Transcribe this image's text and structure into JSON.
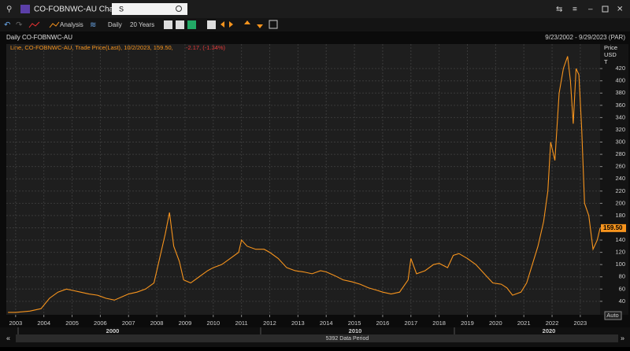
{
  "window": {
    "title": "CO-FOBNWC-AU Chart",
    "search": "S"
  },
  "toolbar": {
    "analysis": "Analysis",
    "interval": "Daily",
    "range": "20 Years"
  },
  "chart_data": {
    "type": "line",
    "title": "Daily CO-FOBNWC-AU",
    "subtitle": "9/23/2002 - 9/29/2023 (PAR)",
    "legend": "Line, CO-FOBNWC-AU, Trade Price(Last), 10/2/2023, 159.50,",
    "change": "-2.17, (-1.34%)",
    "ylabel": [
      "Price",
      "USD",
      "T"
    ],
    "auto_button": "Auto",
    "color": "#f7941d",
    "x": [
      2002.73,
      2003.0,
      2003.5,
      2003.9,
      2004.2,
      2004.5,
      2004.8,
      2005.0,
      2005.3,
      2005.6,
      2005.9,
      2006.2,
      2006.5,
      2006.8,
      2007.0,
      2007.3,
      2007.6,
      2007.9,
      2008.1,
      2008.3,
      2008.45,
      2008.6,
      2008.8,
      2008.95,
      2009.2,
      2009.5,
      2009.8,
      2010.0,
      2010.3,
      2010.6,
      2010.9,
      2011.0,
      2011.2,
      2011.5,
      2011.8,
      2012.0,
      2012.3,
      2012.6,
      2012.9,
      2013.2,
      2013.5,
      2013.8,
      2014.0,
      2014.3,
      2014.6,
      2014.9,
      2015.2,
      2015.5,
      2015.8,
      2016.0,
      2016.3,
      2016.6,
      2016.9,
      2017.0,
      2017.2,
      2017.5,
      2017.8,
      2018.0,
      2018.3,
      2018.5,
      2018.7,
      2019.0,
      2019.3,
      2019.6,
      2019.9,
      2020.2,
      2020.4,
      2020.6,
      2020.9,
      2021.1,
      2021.3,
      2021.5,
      2021.7,
      2021.85,
      2021.95,
      2022.1,
      2022.25,
      2022.4,
      2022.55,
      2022.65,
      2022.75,
      2022.85,
      2022.95,
      2023.05,
      2023.15,
      2023.3,
      2023.45,
      2023.6,
      2023.7
    ],
    "values": [
      22,
      22,
      24,
      28,
      45,
      55,
      60,
      58,
      55,
      52,
      50,
      45,
      42,
      48,
      52,
      55,
      60,
      70,
      110,
      150,
      185,
      130,
      105,
      75,
      70,
      80,
      90,
      95,
      100,
      110,
      120,
      140,
      130,
      125,
      125,
      120,
      110,
      95,
      90,
      88,
      85,
      90,
      88,
      82,
      75,
      72,
      68,
      62,
      58,
      55,
      52,
      55,
      75,
      110,
      85,
      90,
      100,
      102,
      95,
      115,
      118,
      110,
      100,
      85,
      70,
      68,
      62,
      50,
      55,
      70,
      100,
      130,
      170,
      220,
      300,
      270,
      380,
      420,
      440,
      400,
      330,
      420,
      410,
      320,
      200,
      180,
      125,
      140,
      159.5
    ],
    "xlim": [
      2002.67,
      2023.7
    ],
    "xticks": [
      2003,
      2004,
      2005,
      2006,
      2007,
      2008,
      2009,
      2010,
      2011,
      2012,
      2013,
      2014,
      2015,
      2016,
      2017,
      2018,
      2019,
      2020,
      2021,
      2022,
      2023
    ],
    "ylim": [
      18,
      460
    ],
    "yticks": [
      40,
      60,
      80,
      100,
      120,
      140,
      160,
      180,
      200,
      220,
      240,
      260,
      280,
      300,
      320,
      340,
      360,
      380,
      400,
      420
    ],
    "grid": true,
    "last_price": {
      "value": 159.5,
      "label": "159.50"
    }
  },
  "navigator": {
    "labels": [
      "2000",
      "2010",
      "2020"
    ],
    "period": "5392 Data Period"
  }
}
